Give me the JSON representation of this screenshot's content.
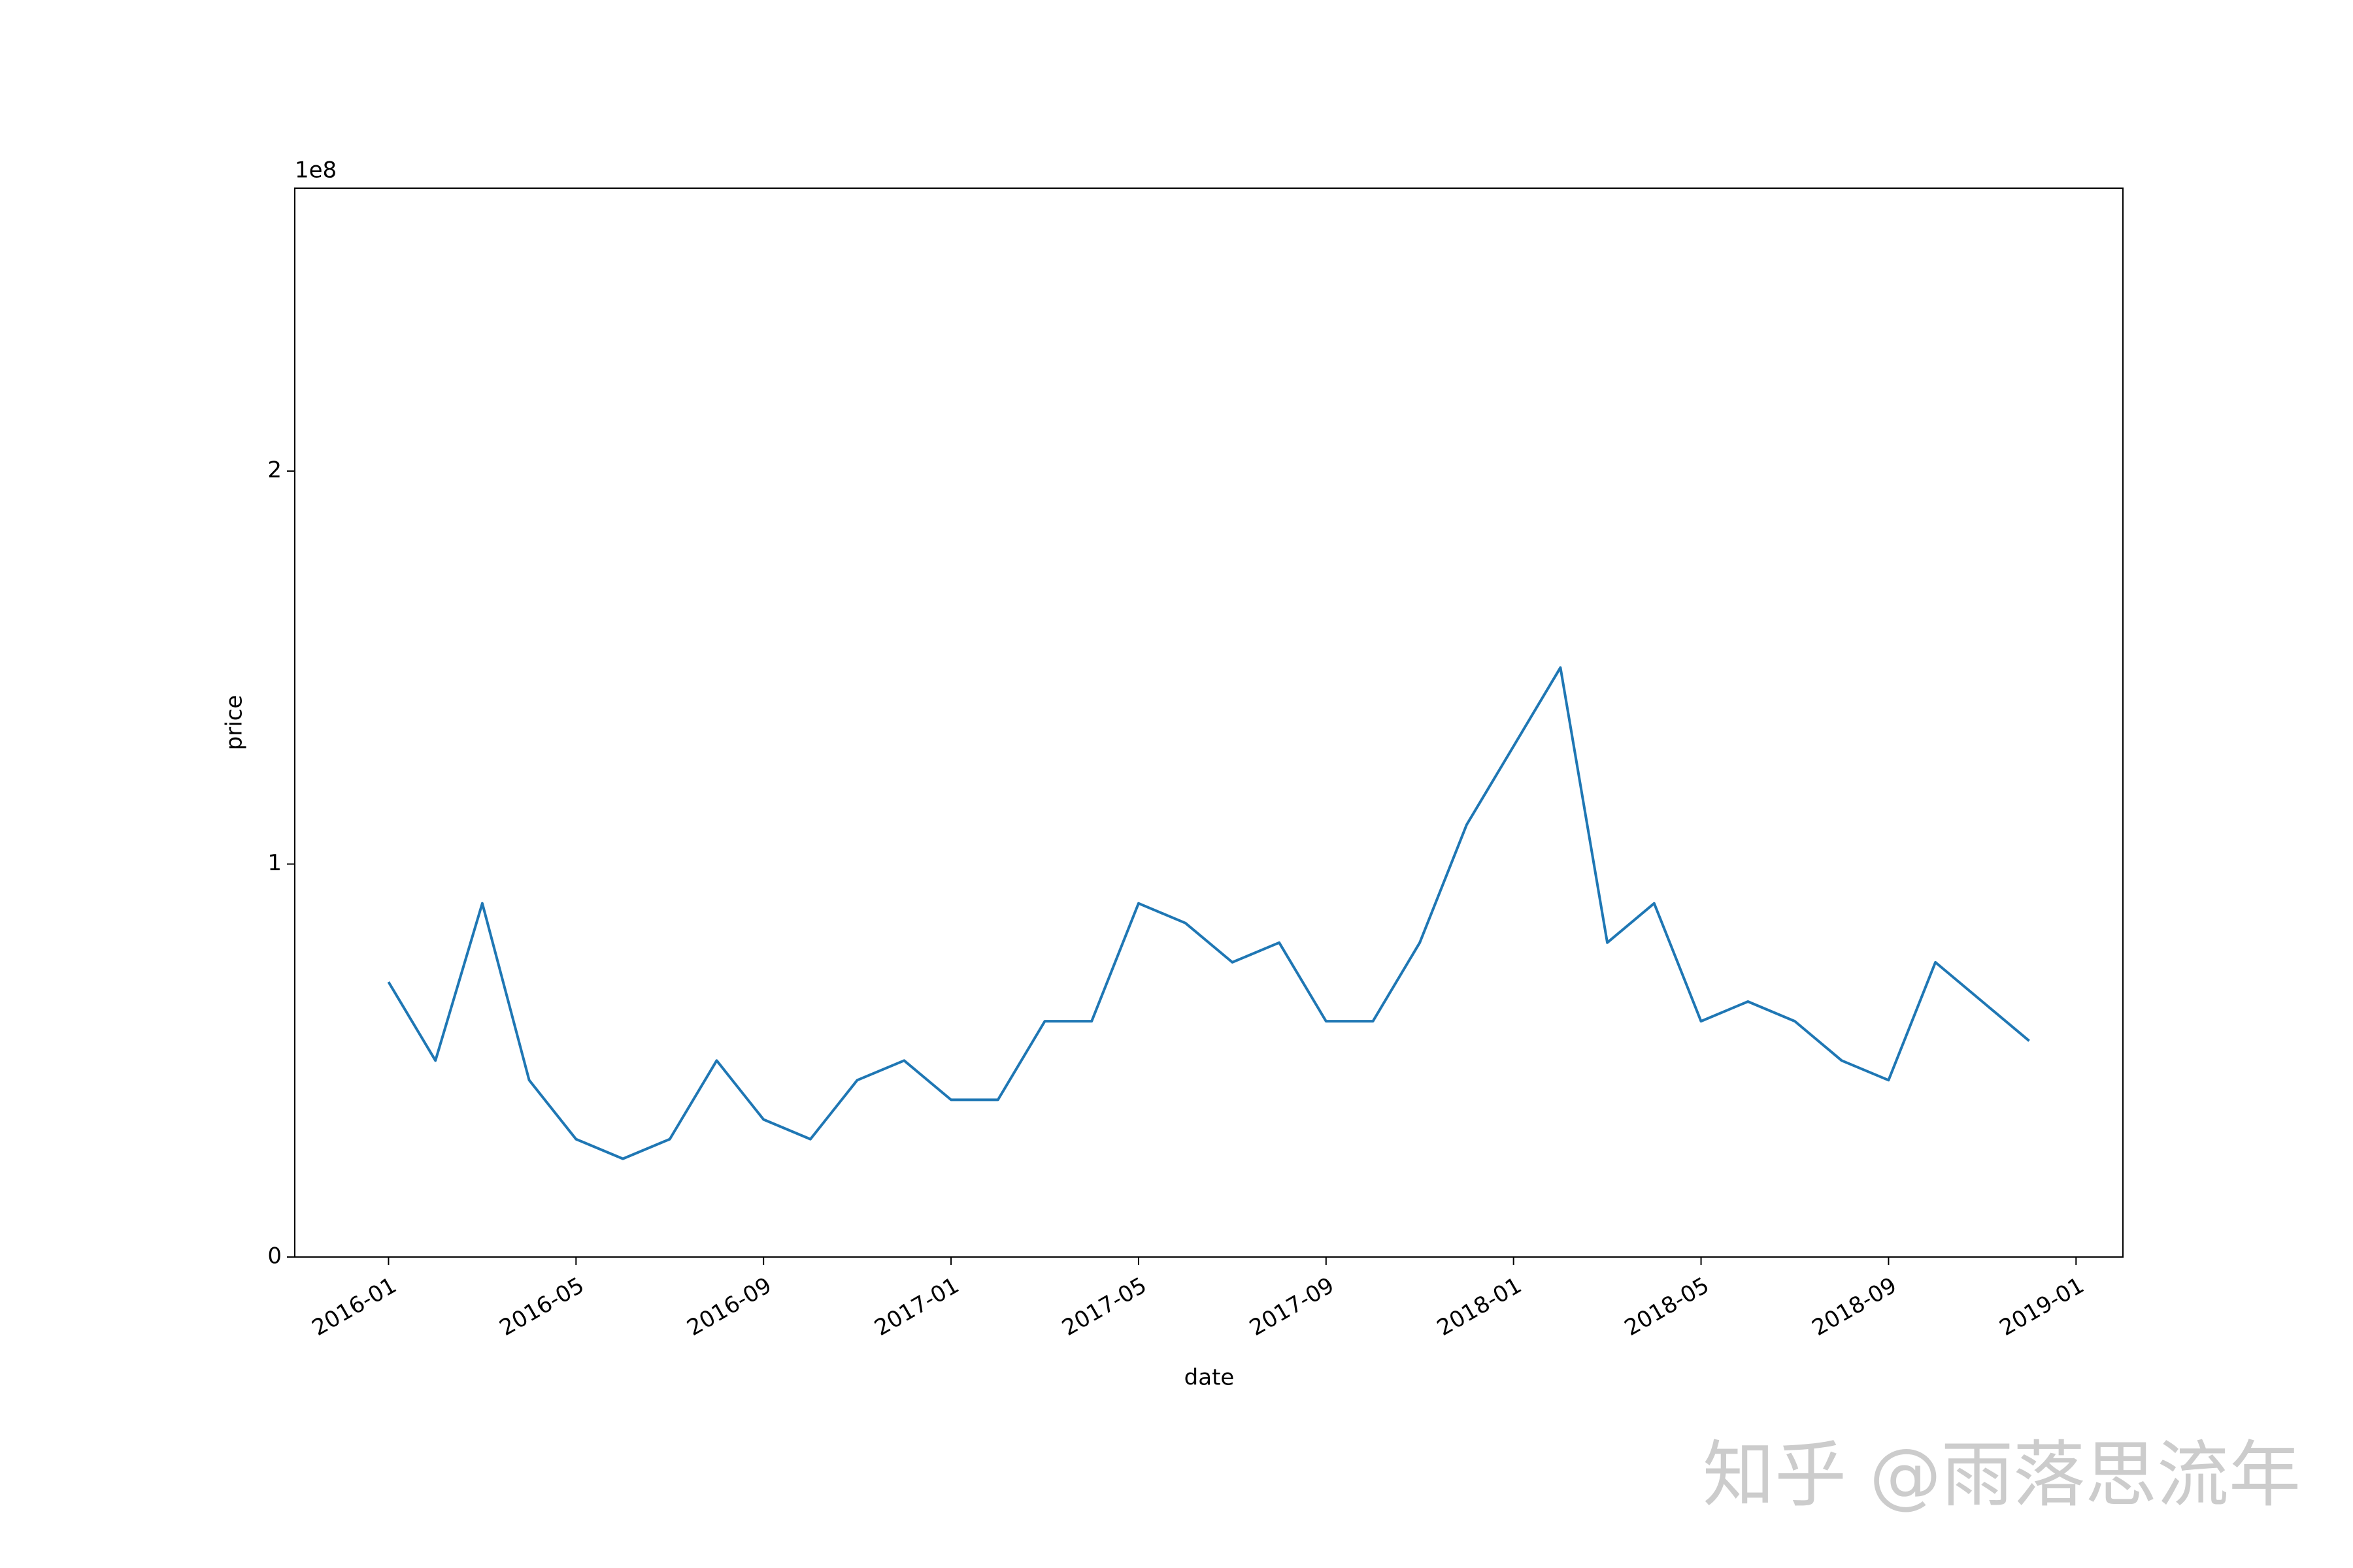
{
  "chart_data": {
    "type": "line",
    "x_label": "date",
    "y_label": "price",
    "y_offset_label": "1e8",
    "watermark": "知乎 @雨落思流年",
    "x": [
      "2016-01",
      "2016-02",
      "2016-03",
      "2016-04",
      "2016-05",
      "2016-06",
      "2016-07",
      "2016-08",
      "2016-09",
      "2016-10",
      "2016-11",
      "2016-12",
      "2017-01",
      "2017-02",
      "2017-03",
      "2017-04",
      "2017-05",
      "2017-06",
      "2017-07",
      "2017-08",
      "2017-09",
      "2017-10",
      "2017-11",
      "2017-12",
      "2018-01",
      "2018-02",
      "2018-03",
      "2018-04",
      "2018-05",
      "2018-06",
      "2018-07",
      "2018-08",
      "2018-09",
      "2018-10",
      "2018-11",
      "2018-12"
    ],
    "values": [
      0.7,
      0.5,
      0.9,
      0.45,
      0.3,
      0.25,
      0.3,
      0.5,
      0.35,
      0.3,
      0.45,
      0.5,
      0.4,
      0.4,
      0.6,
      0.6,
      0.9,
      0.85,
      0.75,
      0.8,
      0.6,
      0.6,
      0.8,
      1.1,
      1.3,
      1.5,
      0.8,
      0.9,
      0.6,
      0.65,
      0.6,
      0.5,
      0.45,
      0.75,
      0.65,
      0.55
    ],
    "color": "#1f77b4",
    "xlim": [
      "2015-11",
      "2019-02"
    ],
    "xticks": [
      "2016-01",
      "2016-05",
      "2016-09",
      "2017-01",
      "2017-05",
      "2017-09",
      "2018-01",
      "2018-05",
      "2018-09",
      "2019-01"
    ],
    "ylim": [
      0,
      2.72
    ],
    "yticks": [
      0,
      1,
      2
    ]
  }
}
